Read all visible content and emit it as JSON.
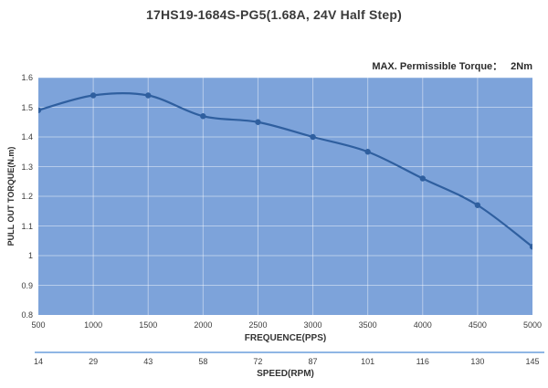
{
  "chart_data": {
    "type": "line",
    "title": "17HS19-1684S-PG5(1.68A, 24V Half Step)",
    "annotation_label": "MAX. Permissible Torque：",
    "annotation_value": "2Nm",
    "xlabel": "FREQUENCE(PPS)",
    "ylabel": "PULL OUT TORQUE(N.m)",
    "x": [
      500,
      1000,
      1500,
      2000,
      2500,
      3000,
      3500,
      4000,
      4500,
      5000
    ],
    "series": [
      {
        "name": "pull-out-torque",
        "values": [
          1.49,
          1.54,
          1.54,
          1.47,
          1.45,
          1.4,
          1.35,
          1.26,
          1.17,
          1.03
        ]
      }
    ],
    "xlim": [
      500,
      5000
    ],
    "ylim": [
      0.8,
      1.6
    ],
    "x_tick_labels": [
      "500",
      "1000",
      "1500",
      "2000",
      "2500",
      "3000",
      "3500",
      "4000",
      "4500",
      "5000"
    ],
    "y_tick_labels": [
      "1.6",
      "1.5",
      "1.4",
      "1.3",
      "1.2",
      "1.1",
      "1",
      "0.9",
      "0.8"
    ],
    "y_tick_values": [
      1.6,
      1.5,
      1.4,
      1.3,
      1.2,
      1.1,
      1.0,
      0.9,
      0.8
    ],
    "grid": true,
    "legend": false,
    "secondary_x_axis": {
      "label": "SPEED(RPM)",
      "tick_labels": [
        "14",
        "29",
        "43",
        "58",
        "72",
        "87",
        "101",
        "116",
        "130",
        "145"
      ]
    },
    "colors": {
      "plot_background": "#7da3da",
      "line": "#2f5f9f",
      "marker": "#2f5f9f",
      "gridline": "rgba(255,255,255,0.45)",
      "speed_ruler": "#8fb6e4",
      "text": "#333333"
    }
  }
}
